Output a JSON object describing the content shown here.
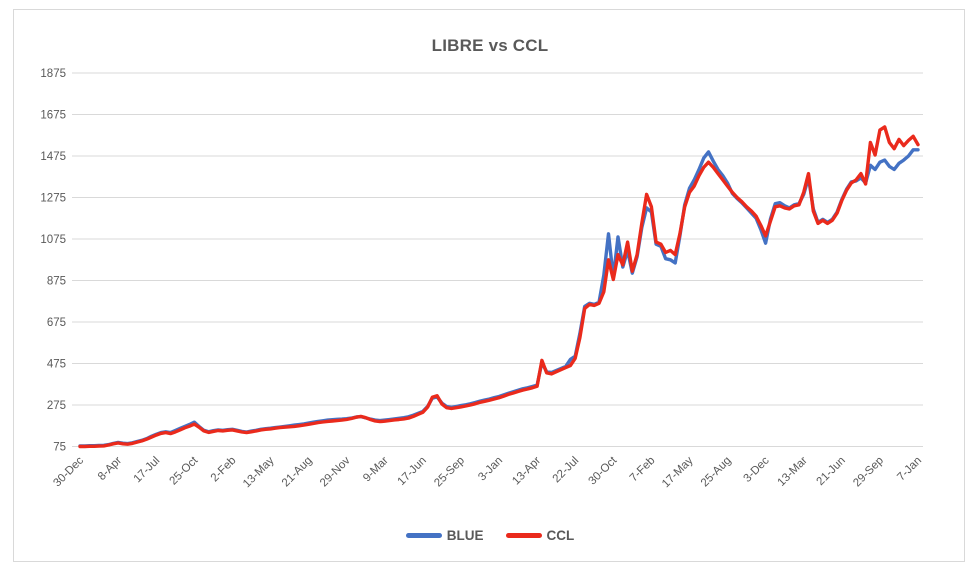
{
  "page": {
    "background": "#ffffff"
  },
  "chart": {
    "title": "LIBRE vs CCL",
    "title_color": "#595959",
    "frame_border_color": "#d9d9d9",
    "gridline_color": "#d9d9d9",
    "axis_label_color": "#595959",
    "legend": [
      {
        "label": "BLUE",
        "color": "#4472c4"
      },
      {
        "label": "CCL",
        "color": "#ea2a1c"
      }
    ]
  },
  "chart_data": {
    "type": "line",
    "title": "LIBRE vs CCL",
    "grid": true,
    "legend_position": "bottom",
    "x_tick_labels": [
      "30-Dec",
      "8-Apr",
      "17-Jul",
      "25-Oct",
      "2-Feb",
      "13-May",
      "21-Aug",
      "29-Nov",
      "9-Mar",
      "17-Jun",
      "25-Sep",
      "3-Jan",
      "13-Apr",
      "22-Jul",
      "30-Oct",
      "7-Feb",
      "17-May",
      "25-Aug",
      "3-Dec",
      "13-Mar",
      "21-Jun",
      "29-Sep",
      "7-Jan"
    ],
    "x_points_per_tick_interval": 8,
    "y_axis": {
      "min": 75,
      "max": 1875,
      "major_unit": 200,
      "tick_labels": [
        "75",
        "275",
        "475",
        "675",
        "875",
        "1075",
        "1275",
        "1475",
        "1675",
        "1875"
      ]
    },
    "series": [
      {
        "name": "BLUE",
        "color": "#4472c4",
        "values": [
          78,
          78,
          79,
          79,
          80,
          81,
          84,
          90,
          95,
          91,
          89,
          93,
          99,
          105,
          113,
          124,
          134,
          142,
          146,
          142,
          152,
          162,
          172,
          181,
          192,
          172,
          153,
          146,
          151,
          155,
          153,
          156,
          158,
          153,
          148,
          145,
          149,
          153,
          158,
          161,
          163,
          166,
          169,
          172,
          175,
          178,
          181,
          184,
          188,
          192,
          196,
          199,
          202,
          204,
          206,
          207,
          209,
          212,
          217,
          219,
          213,
          207,
          202,
          200,
          202,
          205,
          208,
          211,
          214,
          218,
          226,
          235,
          244,
          268,
          308,
          314,
          284,
          268,
          264,
          268,
          272,
          276,
          281,
          287,
          294,
          299,
          304,
          310,
          316,
          324,
          332,
          339,
          346,
          353,
          358,
          364,
          371,
          480,
          436,
          431,
          441,
          451,
          461,
          495,
          510,
          620,
          750,
          765,
          760,
          770,
          900,
          1100,
          890,
          1085,
          940,
          1020,
          910,
          990,
          1130,
          1225,
          1205,
          1050,
          1040,
          980,
          975,
          960,
          1090,
          1240,
          1320,
          1360,
          1410,
          1465,
          1495,
          1450,
          1410,
          1380,
          1345,
          1295,
          1270,
          1250,
          1225,
          1200,
          1175,
          1120,
          1055,
          1170,
          1245,
          1250,
          1235,
          1225,
          1240,
          1245,
          1290,
          1370,
          1220,
          1155,
          1170,
          1155,
          1170,
          1205,
          1265,
          1315,
          1350,
          1355,
          1370,
          1345,
          1430,
          1410,
          1445,
          1455,
          1425,
          1410,
          1440,
          1455,
          1475,
          1505,
          1505
        ]
      },
      {
        "name": "CCL",
        "color": "#ea2a1c",
        "values": [
          75,
          75,
          76,
          76,
          77,
          78,
          82,
          88,
          92,
          88,
          86,
          90,
          96,
          102,
          110,
          120,
          130,
          138,
          142,
          137,
          145,
          155,
          165,
          173,
          183,
          168,
          150,
          143,
          148,
          152,
          150,
          153,
          155,
          150,
          145,
          142,
          146,
          150,
          155,
          158,
          160,
          163,
          166,
          168,
          170,
          172,
          175,
          178,
          182,
          186,
          190,
          193,
          196,
          198,
          200,
          202,
          205,
          210,
          216,
          220,
          214,
          205,
          198,
          195,
          197,
          200,
          203,
          205,
          208,
          212,
          220,
          230,
          240,
          265,
          312,
          320,
          280,
          262,
          258,
          262,
          266,
          270,
          275,
          281,
          288,
          293,
          298,
          304,
          310,
          318,
          326,
          333,
          340,
          347,
          352,
          358,
          365,
          490,
          430,
          425,
          435,
          445,
          455,
          465,
          500,
          600,
          740,
          760,
          755,
          765,
          820,
          975,
          880,
          1000,
          950,
          1060,
          920,
          1000,
          1150,
          1290,
          1230,
          1060,
          1050,
          1010,
          1020,
          1000,
          1100,
          1230,
          1300,
          1330,
          1380,
          1420,
          1445,
          1420,
          1390,
          1360,
          1330,
          1300,
          1275,
          1255,
          1230,
          1210,
          1185,
          1140,
          1090,
          1160,
          1230,
          1235,
          1225,
          1220,
          1235,
          1240,
          1300,
          1390,
          1210,
          1150,
          1165,
          1150,
          1165,
          1200,
          1260,
          1310,
          1345,
          1360,
          1390,
          1340,
          1540,
          1480,
          1600,
          1615,
          1540,
          1510,
          1555,
          1525,
          1550,
          1570,
          1530
        ]
      }
    ]
  }
}
